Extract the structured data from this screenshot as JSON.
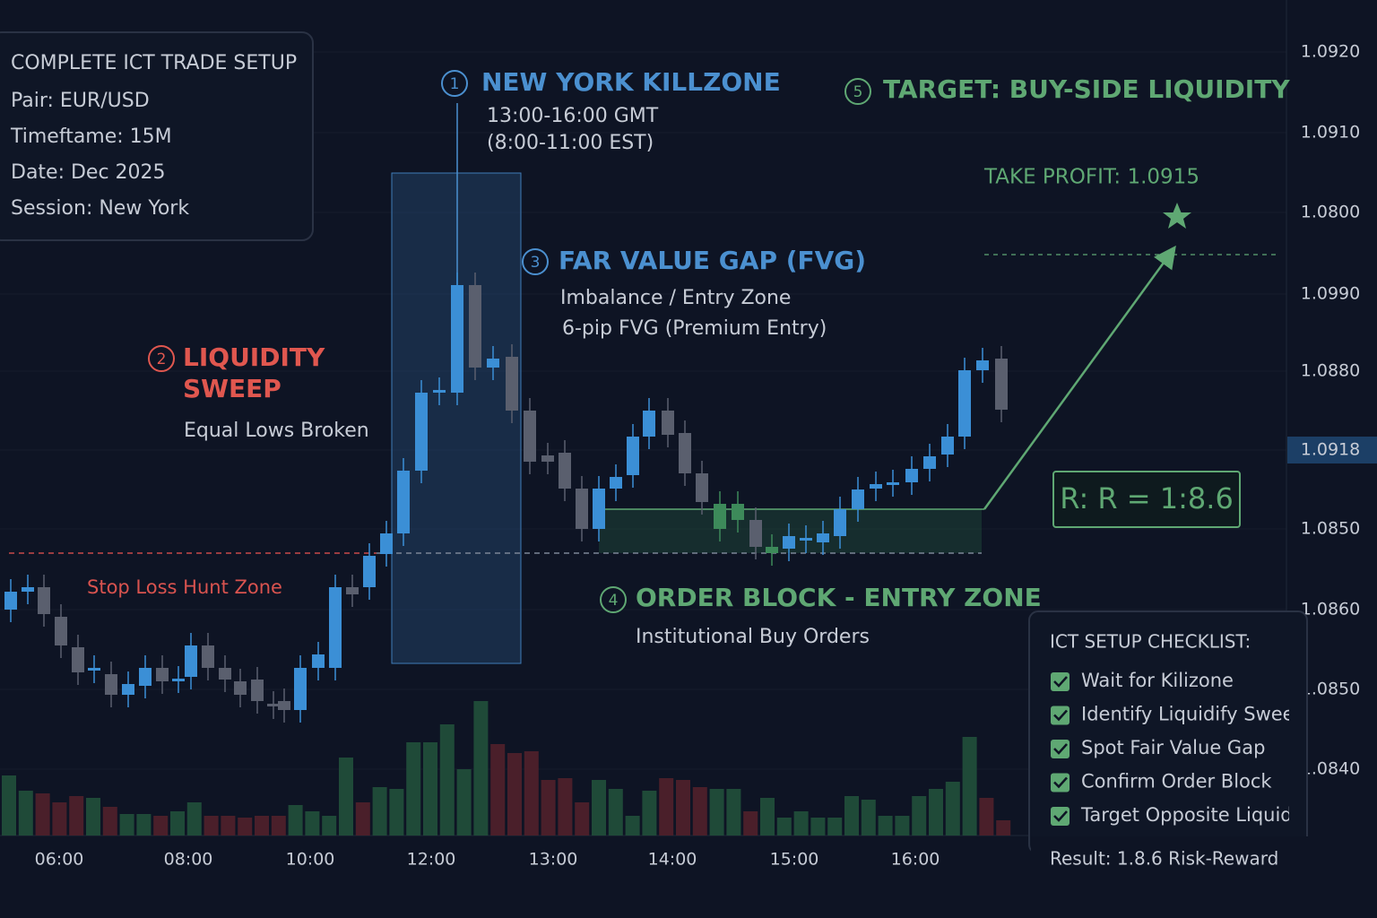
{
  "info_panel": {
    "title": "COMPLETE ICT TRADE SETUP",
    "lines": [
      "Pair:  EUR/USD",
      "Timeftame: 15M",
      "Date: Dec 2025",
      "Session: New York"
    ]
  },
  "killzone": {
    "number": "1",
    "title": "NEW YORK KILLZONE",
    "lines": [
      "13:00-16:00 GMT",
      "(8:00-11:00 EST)"
    ]
  },
  "sweep": {
    "number": "2",
    "title_lines": [
      "LIQUIDITY",
      "SWEEP"
    ],
    "note": "Equal Lows Broken"
  },
  "fvg": {
    "number": "3",
    "title": "FAR VALUE GAP (FVG)",
    "lines": [
      "Imbalance / Entry Zone",
      "6-pip FVG (Premium Entry)"
    ]
  },
  "order_block": {
    "number": "4",
    "title": "ORDER BLOCK - ENTRY ZONE",
    "note": "Institutional Buy Orders"
  },
  "target": {
    "number": "5",
    "title": "TARGET: BUY-SIDE LIQUIDITY",
    "take_profit": "TAKE PROFIT:  1.0915"
  },
  "stop_loss_label": "Stop Loss Hunt Zone",
  "risk_reward": "R: R = 1:8.6",
  "price_axis": [
    "1.0920",
    "1.0910",
    "1.0800",
    "1.0990",
    "1.0880",
    "1.0918",
    "1.0850",
    "1.0860",
    "1.0850",
    "1.0840"
  ],
  "time_axis": [
    "06:00",
    "08:00",
    "10:00",
    "12:00",
    "13:00",
    "14:00",
    "15:00",
    "16:00"
  ],
  "checklist": {
    "title": "ICT SETUP CHECKLIST:",
    "items": [
      "Wait for Kilizone",
      "Identify Liquidify Swee",
      "Spot Fair Value Gap",
      "Confirm Order Block",
      "Target Opposite Liquidity"
    ]
  },
  "result": "Result:  1.8.6 Risk-Reward"
}
